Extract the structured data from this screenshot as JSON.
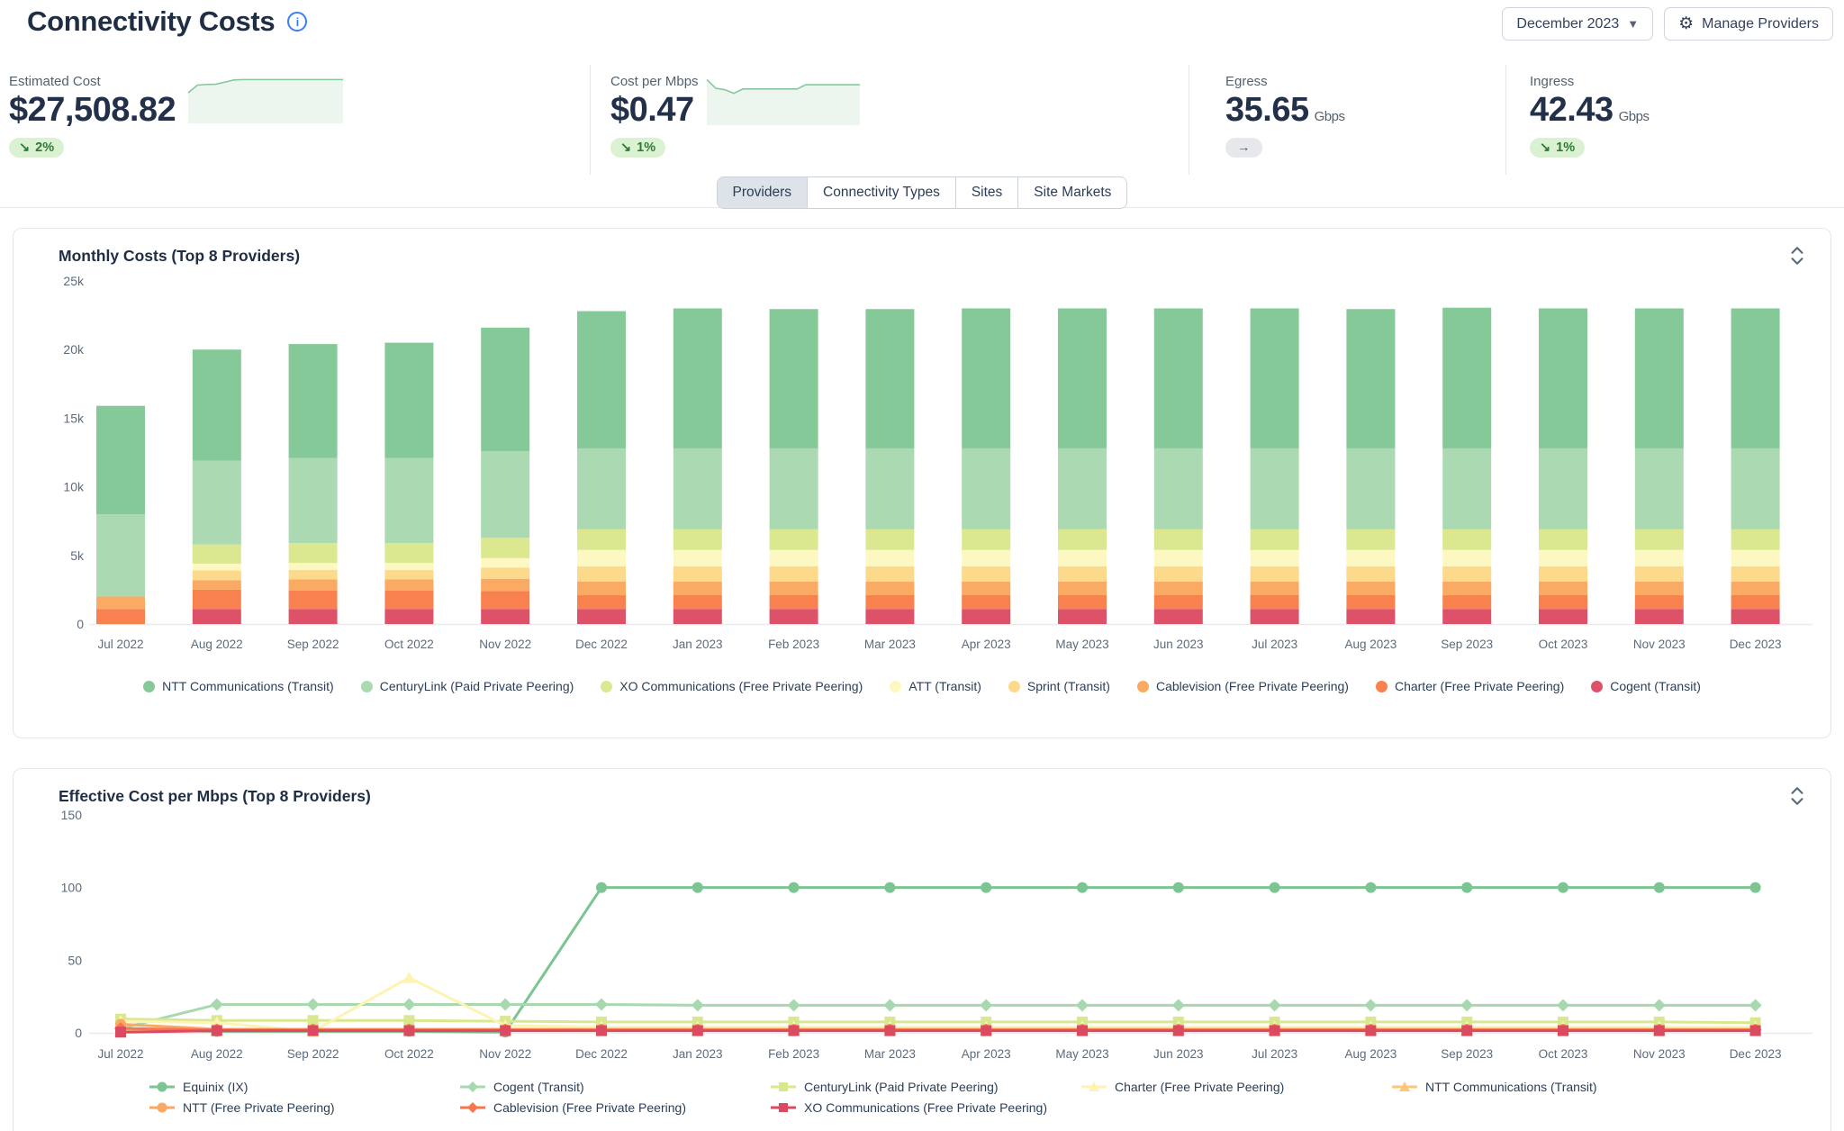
{
  "header": {
    "title": "Connectivity Costs",
    "info_icon": "info-icon",
    "period_selector": "December 2023",
    "manage_button": "Manage Providers"
  },
  "kpis": [
    {
      "label": "Estimated Cost",
      "value": "$27,508.82",
      "unit": "",
      "delta_icon": "↘",
      "delta_label": "2%",
      "trend": "down",
      "spark": [
        15.9,
        20.0,
        20.4,
        20.5,
        21.6,
        22.8,
        23.0,
        23.0,
        23.0,
        23.0,
        23.0,
        23.0,
        23.0,
        23.0,
        23.0,
        23.0,
        23.0,
        23.0
      ]
    },
    {
      "label": "Cost per Mbps",
      "value": "$0.47",
      "unit": "",
      "delta_icon": "↘",
      "delta_label": "1%",
      "trend": "down",
      "spark": [
        0.62,
        0.5,
        0.48,
        0.43,
        0.49,
        0.49,
        0.49,
        0.49,
        0.49,
        0.49,
        0.49,
        0.55,
        0.55,
        0.55,
        0.55,
        0.55,
        0.55,
        0.55
      ]
    },
    {
      "label": "Egress",
      "value": "35.65",
      "unit": "Gbps",
      "delta_icon": "→",
      "delta_label": "",
      "trend": "flat",
      "spark": []
    },
    {
      "label": "Ingress",
      "value": "42.43",
      "unit": "Gbps",
      "delta_icon": "↘",
      "delta_label": "1%",
      "trend": "down",
      "spark": []
    }
  ],
  "tabs": {
    "items": [
      {
        "label": "Providers",
        "active": true
      },
      {
        "label": "Connectivity Types",
        "active": false
      },
      {
        "label": "Sites",
        "active": false
      },
      {
        "label": "Site Markets",
        "active": false
      }
    ]
  },
  "colors": {
    "spark_line": "#86c89b",
    "spark_fill": "rgba(134,200,155,0.16)",
    "axis_text": "#5d6b7c",
    "axis_line": "#e8ebee",
    "badge_green_bg": "#daf2d2",
    "badge_green_text": "#2d7a35"
  },
  "chart_data": [
    {
      "type": "bar",
      "stacked": true,
      "title": "Monthly Costs (Top 8 Providers)",
      "xlabel": "",
      "ylabel": "",
      "ylim": [
        0,
        25000
      ],
      "yticks": [
        {
          "v": 25000,
          "t": "25k"
        },
        {
          "v": 20000,
          "t": "20k"
        },
        {
          "v": 15000,
          "t": "15k"
        },
        {
          "v": 10000,
          "t": "10k"
        },
        {
          "v": 5000,
          "t": "5k"
        },
        {
          "v": 0,
          "t": "0"
        }
      ],
      "grid": false,
      "legend_position": "bottom",
      "categories": [
        "Jul 2022",
        "Aug 2022",
        "Sep 2022",
        "Oct 2022",
        "Nov 2022",
        "Dec 2022",
        "Jan 2023",
        "Feb 2023",
        "Mar 2023",
        "Apr 2023",
        "May 2023",
        "Jun 2023",
        "Jul 2023",
        "Aug 2023",
        "Sep 2023",
        "Oct 2023",
        "Nov 2023",
        "Dec 2023"
      ],
      "series": [
        {
          "name": "NTT Communications (Transit)",
          "color": "#85c998",
          "values": [
            7900,
            8100,
            8300,
            8400,
            9000,
            10000,
            10200,
            10150,
            10150,
            10200,
            10200,
            10200,
            10200,
            10150,
            10250,
            10200,
            10200,
            10200
          ]
        },
        {
          "name": "CenturyLink (Paid Private Peering)",
          "color": "#abd9b2",
          "values": [
            6000,
            6100,
            6200,
            6200,
            6300,
            5900,
            5900,
            5900,
            5900,
            5900,
            5900,
            5900,
            5900,
            5900,
            5900,
            5900,
            5900,
            5900
          ]
        },
        {
          "name": "XO Communications (Free Private Peering)",
          "color": "#dbe88f",
          "values": [
            0,
            1400,
            1450,
            1450,
            1500,
            1500,
            1500,
            1500,
            1500,
            1500,
            1500,
            1500,
            1500,
            1500,
            1500,
            1500,
            1500,
            1500
          ]
        },
        {
          "name": "ATT (Transit)",
          "color": "#fdf8c2",
          "values": [
            0,
            500,
            500,
            500,
            700,
            1200,
            1200,
            1200,
            1200,
            1200,
            1200,
            1200,
            1200,
            1200,
            1200,
            1200,
            1200,
            1200
          ]
        },
        {
          "name": "Sprint (Transit)",
          "color": "#fcd98b",
          "values": [
            0,
            700,
            700,
            700,
            800,
            1100,
            1100,
            1100,
            1100,
            1100,
            1100,
            1100,
            1100,
            1100,
            1100,
            1100,
            1100,
            1100
          ]
        },
        {
          "name": "Cablevision (Free Private Peering)",
          "color": "#fbaa63",
          "values": [
            900,
            700,
            800,
            800,
            900,
            1000,
            1000,
            1000,
            1000,
            1000,
            1000,
            1000,
            1000,
            1000,
            1000,
            1000,
            1000,
            1000
          ]
        },
        {
          "name": "Charter (Free Private Peering)",
          "color": "#f8814f",
          "values": [
            1100,
            1400,
            1350,
            1350,
            1300,
            1000,
            1000,
            1000,
            1000,
            1000,
            1000,
            1000,
            1000,
            1000,
            1000,
            1000,
            1000,
            1000
          ]
        },
        {
          "name": "Cogent (Transit)",
          "color": "#dd5268",
          "values": [
            0,
            1100,
            1100,
            1100,
            1100,
            1100,
            1100,
            1100,
            1100,
            1100,
            1100,
            1100,
            1100,
            1100,
            1100,
            1100,
            1100,
            1100
          ]
        }
      ]
    },
    {
      "type": "line",
      "title": "Effective Cost per Mbps (Top 8 Providers)",
      "xlabel": "",
      "ylabel": "",
      "ylim": [
        0,
        150
      ],
      "yticks": [
        {
          "v": 150,
          "t": "150"
        },
        {
          "v": 100,
          "t": "100"
        },
        {
          "v": 50,
          "t": "50"
        },
        {
          "v": 0,
          "t": "0"
        }
      ],
      "grid": false,
      "legend_position": "bottom",
      "categories": [
        "Jul 2022",
        "Aug 2022",
        "Sep 2022",
        "Oct 2022",
        "Nov 2022",
        "Dec 2022",
        "Jan 2023",
        "Feb 2023",
        "Mar 2023",
        "Apr 2023",
        "May 2023",
        "Jun 2023",
        "Jul 2023",
        "Aug 2023",
        "Sep 2023",
        "Oct 2023",
        "Nov 2023",
        "Dec 2023"
      ],
      "series": [
        {
          "name": "Equinix (IX)",
          "color": "#7cc492",
          "marker": "circle",
          "values": [
            2,
            1,
            1,
            1,
            0.5,
            100,
            100,
            100,
            100,
            100,
            100,
            100,
            100,
            100,
            100,
            100,
            100,
            100
          ]
        },
        {
          "name": "Cogent (Transit)",
          "color": "#a8d8ae",
          "marker": "diamond",
          "values": [
            3,
            19.5,
            19.5,
            19.5,
            19.5,
            19.5,
            19,
            19,
            19,
            19,
            19,
            19,
            19,
            19,
            19,
            19,
            19,
            19
          ]
        },
        {
          "name": "CenturyLink (Paid Private Peering)",
          "color": "#d9e88e",
          "marker": "square",
          "values": [
            9.5,
            8.5,
            8.5,
            8.5,
            8,
            7.5,
            7.5,
            7.5,
            7.5,
            7.5,
            7.5,
            7.5,
            7.5,
            7.5,
            7.5,
            7.5,
            7.5,
            7
          ]
        },
        {
          "name": "Charter (Free Private Peering)",
          "color": "#fdf3b3",
          "marker": "triangle",
          "values": [
            8,
            7,
            1,
            38,
            5,
            4,
            4,
            4,
            4,
            4,
            4,
            4,
            4,
            4,
            4,
            4,
            4,
            4
          ]
        },
        {
          "name": "NTT Communications (Transit)",
          "color": "#fbc779",
          "marker": "triangle",
          "values": [
            1.5,
            2,
            2,
            2,
            2,
            2,
            2,
            2,
            2,
            2,
            2,
            2,
            2,
            2,
            2,
            2,
            2,
            2
          ]
        },
        {
          "name": "NTT (Free Private Peering)",
          "color": "#fba864",
          "marker": "circle",
          "values": [
            6,
            2.5,
            2.5,
            2.5,
            2.5,
            2.5,
            2.5,
            2.5,
            2.5,
            2.5,
            2.5,
            2.5,
            2.5,
            2.5,
            2.5,
            2.5,
            2.5,
            2.5
          ]
        },
        {
          "name": "Cablevision (Free Private Peering)",
          "color": "#f8764e",
          "marker": "diamond",
          "values": [
            3,
            2,
            2,
            2,
            2,
            2,
            2,
            2,
            2,
            2,
            2,
            2,
            2,
            2,
            2,
            2,
            2,
            2
          ]
        },
        {
          "name": "XO Communications (Free Private Peering)",
          "color": "#dc4a62",
          "marker": "square",
          "values": [
            0.5,
            1.5,
            1.5,
            1.5,
            1.5,
            1.5,
            1.5,
            1.5,
            1.5,
            1.5,
            1.5,
            1.5,
            1.5,
            1.5,
            1.5,
            1.5,
            1.5,
            1.5
          ]
        }
      ]
    }
  ]
}
